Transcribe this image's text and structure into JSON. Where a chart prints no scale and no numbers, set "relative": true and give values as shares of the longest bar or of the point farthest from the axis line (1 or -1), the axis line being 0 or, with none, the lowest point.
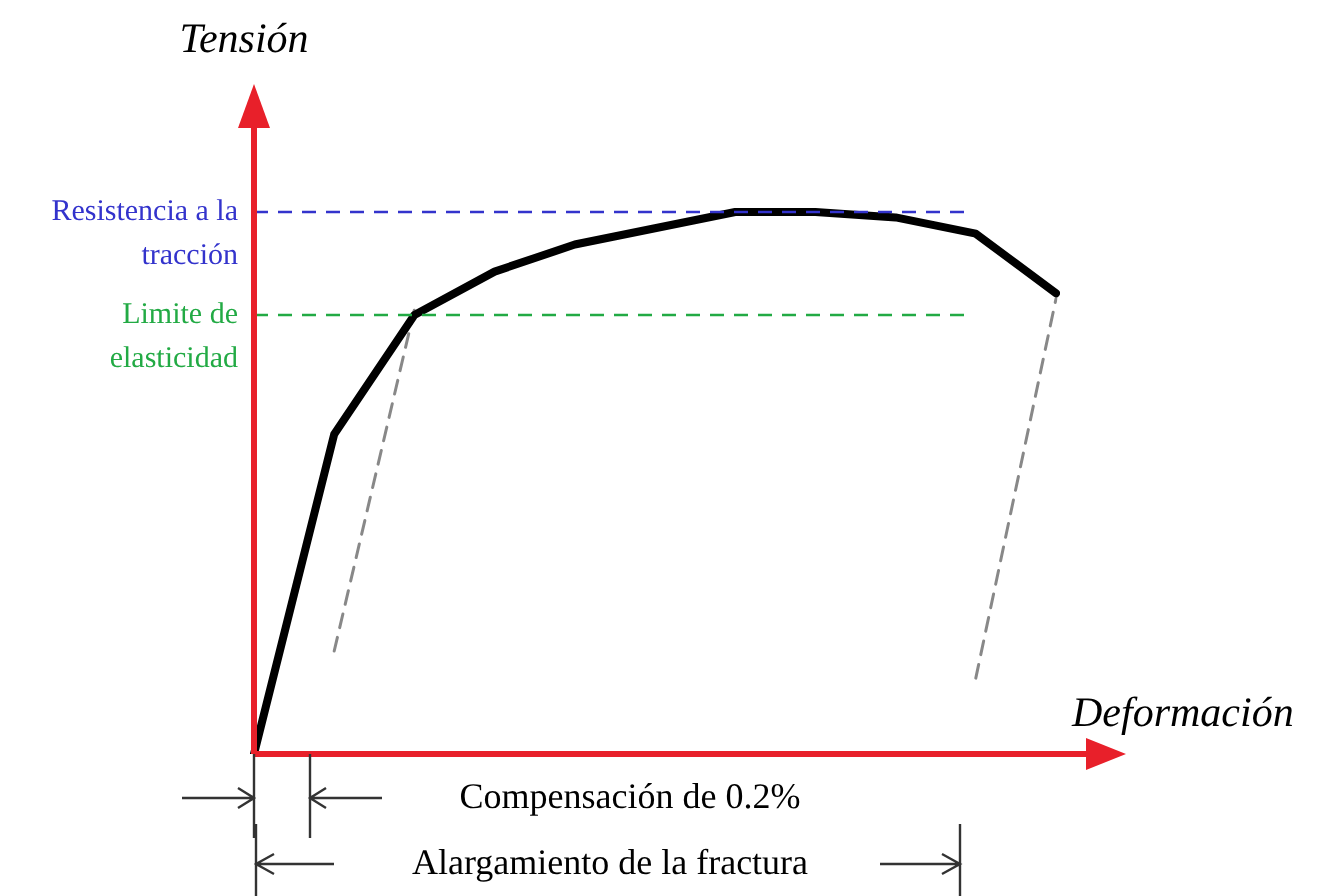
{
  "chart_data": {
    "type": "line",
    "relative": true,
    "xlabel": "Deformación",
    "ylabel": "Tensión",
    "categories": [
      null,
      null,
      null,
      null,
      null,
      null,
      null,
      null,
      null,
      null,
      null
    ],
    "series": [
      {
        "color": "#000000",
        "values": [
          0,
          0.59,
          0.81,
          0.89,
          0.94,
          0.97,
          1,
          1,
          0.99,
          0.96,
          0.85
        ]
      },
      {
        "color": "#888888",
        "line_style": "dashed",
        "values": [
          null,
          0.19,
          0.82,
          null,
          null,
          null,
          null,
          null,
          null,
          null,
          null
        ]
      },
      {
        "color": "#888888",
        "line_style": "dashed",
        "values": [
          null,
          null,
          null,
          null,
          null,
          null,
          null,
          null,
          null,
          0.14,
          0.84
        ]
      }
    ],
    "ref_lines": [
      {
        "axis": "y",
        "value": 1,
        "label": "Resistencia a la tracción",
        "color": "#3333cc",
        "line_style": "dashed"
      },
      {
        "axis": "y",
        "value": 0.81,
        "label": "Limite de elasticidad",
        "color": "#22aa44",
        "line_style": "dashed"
      }
    ],
    "annotations": [
      "Compensación de 0.2%",
      "Alargamiento de la fractura"
    ],
    "legend": false,
    "marker": "none",
    "line_style": "solid"
  }
}
